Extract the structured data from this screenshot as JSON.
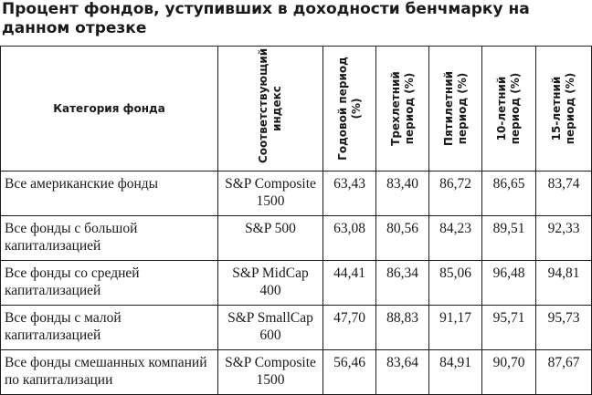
{
  "title": "Процент фондов, уступивших в доходности бенчмарку на данном отрезке",
  "table": {
    "headers": {
      "category": "Категория фонда",
      "index": "Соответствующий индекс",
      "period1": "Годовой период (%)",
      "period3": "Трехлетний период (%)",
      "period5": "Пятилетний период (%)",
      "period10": "10-летний период (%)",
      "period15": "15-летний период (%)"
    },
    "rows": [
      {
        "category": "Все американские фонды",
        "index": "S&P Composite 1500",
        "period1": "63,43",
        "period3": "83,40",
        "period5": "86,72",
        "period10": "86,65",
        "period15": "83,74"
      },
      {
        "category": "Все фонды с большой капитализацией",
        "index": "S&P 500",
        "period1": "63,08",
        "period3": "80,56",
        "period5": "84,23",
        "period10": "89,51",
        "period15": "92,33"
      },
      {
        "category": "Все фонды со средней капитализацией",
        "index": "S&P MidCap 400",
        "period1": "44,41",
        "period3": "86,34",
        "period5": "85,06",
        "period10": "96,48",
        "period15": "94,81"
      },
      {
        "category": "Все фонды с малой капитализацией",
        "index": "S&P SmallCap 600",
        "period1": "47,70",
        "period3": "88,83",
        "period5": "91,17",
        "period10": "95,71",
        "period15": "95,73"
      },
      {
        "category": "Все фонды смешанных компаний по капитализации",
        "index": "S&P Composite 1500",
        "period1": "56,46",
        "period3": "83,64",
        "period5": "84,91",
        "period10": "90,70",
        "period15": "87,67"
      }
    ]
  }
}
